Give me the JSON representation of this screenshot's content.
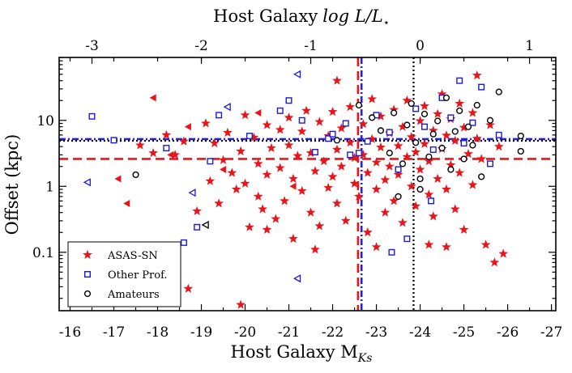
{
  "chart_data": {
    "type": "scatter",
    "title": "",
    "xlabel": "Host Galaxy M",
    "xlabel_sub": "Ks",
    "x2label": "Host Galaxy",
    "x2label_math": "log L/L",
    "x2label_sub": "⋆",
    "ylabel": "Offset (kpc)",
    "xlim": [
      -15.75,
      -27.1
    ],
    "ylim_log": [
      0.013,
      90
    ],
    "x_ticks": [
      -16,
      -17,
      -18,
      -19,
      -20,
      -21,
      -22,
      -23,
      -24,
      -25,
      -26,
      -27
    ],
    "x_tick_labels": [
      "-16",
      "-17",
      "-18",
      "-19",
      "-20",
      "-21",
      "-22",
      "-23",
      "-24",
      "-25",
      "-26",
      "-27"
    ],
    "x2_ticks": [
      -3,
      -2,
      -1,
      0,
      1
    ],
    "x2_tick_labels": [
      "-3",
      "-2",
      "-1",
      "0",
      "1"
    ],
    "x2_zero_point_mag": -24.0,
    "y_ticks": [
      0.1,
      1,
      10
    ],
    "y_tick_labels": [
      "0.1",
      "1",
      "10"
    ],
    "reference_lines": [
      {
        "name": "asassn-median-mag",
        "orientation": "vertical",
        "value": -22.58,
        "color": "#e8161b",
        "style": "dashed"
      },
      {
        "name": "other-median-mag",
        "orientation": "vertical",
        "value": -22.66,
        "color": "#2222dd",
        "style": "dashdot"
      },
      {
        "name": "amateur-median-mag",
        "orientation": "vertical",
        "value": -23.85,
        "color": "#000000",
        "style": "dotted"
      },
      {
        "name": "asassn-median-offset",
        "orientation": "horizontal",
        "value": 2.6,
        "color": "#e8161b",
        "style": "dashed"
      },
      {
        "name": "other-median-offset",
        "orientation": "horizontal",
        "value": 5.2,
        "color": "#2222dd",
        "style": "dashdot"
      },
      {
        "name": "amateur-median-offset",
        "orientation": "horizontal",
        "value": 4.9,
        "color": "#000000",
        "style": "dotted"
      }
    ],
    "legend": {
      "position": "bottom-left",
      "entries": [
        {
          "label": "ASAS-SN",
          "marker": "star",
          "color": "#e8161b"
        },
        {
          "label": "Other Prof.",
          "marker": "open-square",
          "color": "#1a1add"
        },
        {
          "label": "Amateurs",
          "marker": "open-circle",
          "color": "#000000"
        }
      ]
    },
    "series": [
      {
        "name": "ASAS-SN",
        "marker": "star",
        "color": "#e8161b",
        "points": [
          [
            -17.6,
            4.2
          ],
          [
            -17.9,
            3.2
          ],
          [
            -18.2,
            6.0
          ],
          [
            -18.4,
            3.0
          ],
          [
            -18.6,
            4.8
          ],
          [
            -18.7,
            0.028
          ],
          [
            -18.9,
            0.42
          ],
          [
            -19.1,
            9.0
          ],
          [
            -19.2,
            1.2
          ],
          [
            -19.3,
            4.5
          ],
          [
            -19.4,
            0.55
          ],
          [
            -19.5,
            2.5
          ],
          [
            -19.6,
            6.5
          ],
          [
            -19.7,
            1.6
          ],
          [
            -19.8,
            0.9
          ],
          [
            -19.9,
            0.016
          ],
          [
            -19.9,
            3.4
          ],
          [
            -20.0,
            12.0
          ],
          [
            -20.0,
            1.1
          ],
          [
            -20.1,
            0.24
          ],
          [
            -20.2,
            5.5
          ],
          [
            -20.3,
            2.2
          ],
          [
            -20.3,
            0.7
          ],
          [
            -20.4,
            0.45
          ],
          [
            -20.5,
            8.5
          ],
          [
            -20.5,
            1.5
          ],
          [
            -20.6,
            3.8
          ],
          [
            -20.7,
            0.32
          ],
          [
            -20.8,
            7.2
          ],
          [
            -20.8,
            1.9
          ],
          [
            -20.9,
            0.6
          ],
          [
            -21.0,
            4.2
          ],
          [
            -21.0,
            11.0
          ],
          [
            -21.1,
            1.3
          ],
          [
            -21.1,
            0.16
          ],
          [
            -21.2,
            2.9
          ],
          [
            -21.3,
            6.8
          ],
          [
            -21.3,
            0.85
          ],
          [
            -21.4,
            14.0
          ],
          [
            -21.5,
            3.2
          ],
          [
            -21.5,
            0.4
          ],
          [
            -21.6,
            1.7
          ],
          [
            -21.7,
            9.5
          ],
          [
            -21.7,
            0.25
          ],
          [
            -21.8,
            2.4
          ],
          [
            -21.9,
            5.8
          ],
          [
            -21.9,
            0.95
          ],
          [
            -22.0,
            13.5
          ],
          [
            -22.0,
            1.4
          ],
          [
            -22.1,
            3.6
          ],
          [
            -22.1,
            0.55
          ],
          [
            -22.2,
            7.6
          ],
          [
            -22.2,
            2.0
          ],
          [
            -22.3,
            0.3
          ],
          [
            -22.4,
            4.6
          ],
          [
            -22.4,
            16.0
          ],
          [
            -22.5,
            1.1
          ],
          [
            -22.5,
            2.7
          ],
          [
            -22.6,
            0.7
          ],
          [
            -22.7,
            8.8
          ],
          [
            -22.7,
            3.0
          ],
          [
            -22.8,
            1.6
          ],
          [
            -22.8,
            0.2
          ],
          [
            -22.9,
            5.2
          ],
          [
            -22.9,
            21.0
          ],
          [
            -23.0,
            2.3
          ],
          [
            -23.0,
            0.9
          ],
          [
            -23.1,
            11.5
          ],
          [
            -23.1,
            3.9
          ],
          [
            -23.2,
            1.25
          ],
          [
            -23.2,
            0.4
          ],
          [
            -23.3,
            6.4
          ],
          [
            -23.3,
            2.0
          ],
          [
            -23.4,
            14.5
          ],
          [
            -23.4,
            0.6
          ],
          [
            -23.5,
            4.1
          ],
          [
            -23.5,
            1.5
          ],
          [
            -23.6,
            8.0
          ],
          [
            -23.6,
            0.28
          ],
          [
            -23.7,
            2.8
          ],
          [
            -23.7,
            20.0
          ],
          [
            -23.8,
            1.0
          ],
          [
            -23.8,
            5.6
          ],
          [
            -23.9,
            3.3
          ],
          [
            -23.9,
            0.5
          ],
          [
            -24.0,
            9.8
          ],
          [
            -24.0,
            1.8
          ],
          [
            -24.1,
            16.5
          ],
          [
            -24.1,
            4.4
          ],
          [
            -24.2,
            0.75
          ],
          [
            -24.2,
            2.4
          ],
          [
            -24.3,
            7.0
          ],
          [
            -24.3,
            0.35
          ],
          [
            -24.4,
            12.5
          ],
          [
            -24.4,
            1.3
          ],
          [
            -24.5,
            3.7
          ],
          [
            -24.5,
            25.0
          ],
          [
            -24.6,
            0.9
          ],
          [
            -24.6,
            5.9
          ],
          [
            -24.7,
            2.1
          ],
          [
            -24.7,
            10.5
          ],
          [
            -24.8,
            0.45
          ],
          [
            -24.8,
            4.9
          ],
          [
            -24.9,
            1.6
          ],
          [
            -24.9,
            18.0
          ],
          [
            -25.0,
            7.8
          ],
          [
            -25.0,
            0.22
          ],
          [
            -25.1,
            3.1
          ],
          [
            -25.2,
            13.0
          ],
          [
            -25.2,
            1.05
          ],
          [
            -25.3,
            48.0
          ],
          [
            -25.3,
            5.3
          ],
          [
            -25.4,
            2.6
          ],
          [
            -25.5,
            0.13
          ],
          [
            -25.6,
            8.5
          ],
          [
            -25.7,
            0.07
          ],
          [
            -25.8,
            4.0
          ],
          [
            -25.9,
            0.095
          ],
          [
            -24.2,
            0.13
          ],
          [
            -24.6,
            0.12
          ],
          [
            -23.0,
            0.12
          ],
          [
            -21.6,
            0.11
          ],
          [
            -20.5,
            0.22
          ],
          [
            -22.1,
            40.0
          ]
        ]
      },
      {
        "name": "Other Prof.",
        "marker": "open-square",
        "color": "#1a1add",
        "points": [
          [
            -16.5,
            11.5
          ],
          [
            -17.0,
            5.0
          ],
          [
            -18.2,
            3.8
          ],
          [
            -18.6,
            0.14
          ],
          [
            -18.9,
            0.24
          ],
          [
            -19.2,
            2.4
          ],
          [
            -19.4,
            12.0
          ],
          [
            -20.1,
            5.8
          ],
          [
            -20.8,
            14.0
          ],
          [
            -21.0,
            20.0
          ],
          [
            -21.3,
            10.0
          ],
          [
            -21.6,
            3.3
          ],
          [
            -21.9,
            5.3
          ],
          [
            -22.0,
            6.2
          ],
          [
            -22.3,
            9.0
          ],
          [
            -22.6,
            3.2
          ],
          [
            -22.8,
            4.8
          ],
          [
            -23.0,
            12.0
          ],
          [
            -23.3,
            6.6
          ],
          [
            -23.5,
            1.8
          ],
          [
            -23.7,
            0.16
          ],
          [
            -23.9,
            15.0
          ],
          [
            -24.1,
            8.0
          ],
          [
            -24.3,
            3.6
          ],
          [
            -24.5,
            22.0
          ],
          [
            -24.7,
            11.0
          ],
          [
            -24.9,
            40.0
          ],
          [
            -25.0,
            4.5
          ],
          [
            -25.2,
            9.2
          ],
          [
            -25.4,
            32.0
          ],
          [
            -25.6,
            2.2
          ],
          [
            -25.8,
            6.0
          ],
          [
            -23.35,
            0.1
          ],
          [
            -24.25,
            0.6
          ],
          [
            -22.4,
            3.0
          ]
        ]
      },
      {
        "name": "Amateurs",
        "marker": "open-circle",
        "color": "#000000",
        "points": [
          [
            -17.5,
            1.5
          ],
          [
            -22.1,
            5.0
          ],
          [
            -22.6,
            17.0
          ],
          [
            -22.9,
            11.0
          ],
          [
            -23.1,
            7.0
          ],
          [
            -23.3,
            3.2
          ],
          [
            -23.4,
            13.0
          ],
          [
            -23.6,
            2.2
          ],
          [
            -23.7,
            8.5
          ],
          [
            -23.8,
            18.0
          ],
          [
            -23.9,
            4.6
          ],
          [
            -24.0,
            1.3
          ],
          [
            -24.1,
            12.5
          ],
          [
            -24.2,
            2.8
          ],
          [
            -24.3,
            6.2
          ],
          [
            -24.4,
            9.8
          ],
          [
            -24.5,
            3.8
          ],
          [
            -24.6,
            22.0
          ],
          [
            -24.7,
            1.8
          ],
          [
            -24.8,
            6.8
          ],
          [
            -24.9,
            14.0
          ],
          [
            -25.0,
            2.6
          ],
          [
            -25.1,
            8.0
          ],
          [
            -25.2,
            4.2
          ],
          [
            -25.3,
            17.0
          ],
          [
            -25.4,
            1.4
          ],
          [
            -25.6,
            10.0
          ],
          [
            -25.8,
            27.0
          ],
          [
            -26.3,
            5.8
          ],
          [
            -26.3,
            3.4
          ],
          [
            -24.0,
            0.9
          ],
          [
            -23.5,
            0.7
          ]
        ]
      },
      {
        "name": "ASAS-SN-unresolved",
        "marker": "left-triangle",
        "color": "#e8161b",
        "points": [
          [
            -17.1,
            1.3
          ],
          [
            -17.3,
            0.55
          ],
          [
            -17.9,
            22.0
          ],
          [
            -18.3,
            3.0
          ],
          [
            -18.7,
            8.0
          ],
          [
            -19.5,
            1.8
          ],
          [
            -20.3,
            13.0
          ],
          [
            -21.1,
            1.0
          ]
        ]
      },
      {
        "name": "Other Prof.-unresolved",
        "marker": "open-left-triangle",
        "color": "#1a1add",
        "points": [
          [
            -16.4,
            1.15
          ],
          [
            -18.8,
            0.8
          ],
          [
            -19.6,
            16.0
          ],
          [
            -21.2,
            0.04
          ],
          [
            -21.2,
            50.0
          ]
        ]
      },
      {
        "name": "Amateurs-unresolved",
        "marker": "open-left-triangle",
        "color": "#000000",
        "points": [
          [
            -19.1,
            0.26
          ]
        ]
      }
    ]
  }
}
